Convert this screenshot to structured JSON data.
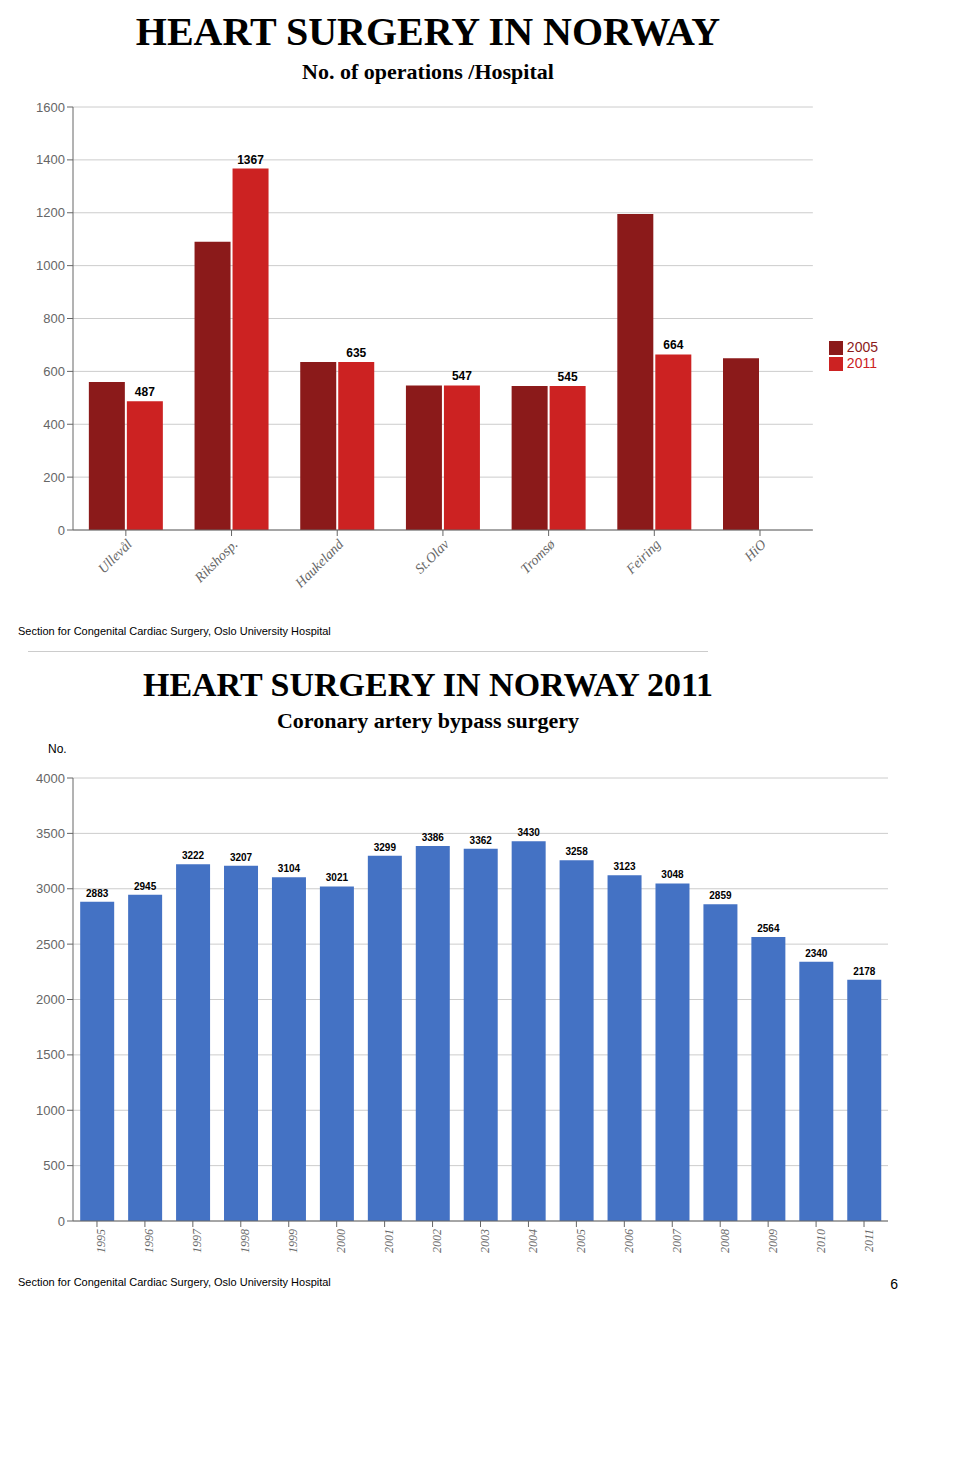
{
  "chart_data": [
    {
      "type": "bar",
      "title": "HEART SURGERY IN NORWAY",
      "subtitle": "No. of operations /Hospital",
      "categories": [
        "Ullevål",
        "Rikshosp.",
        "Haukeland",
        "St.Olav",
        "Tromsø",
        "Feiring",
        "HiO"
      ],
      "series": [
        {
          "name": "2005",
          "color": "#8b1a1a",
          "values": [
            560,
            1090,
            635,
            547,
            545,
            1195,
            650
          ]
        },
        {
          "name": "2011",
          "color": "#cc2222",
          "values": [
            487,
            1367,
            635,
            547,
            545,
            664,
            0
          ],
          "data_labels": true
        }
      ],
      "ylim": [
        0,
        1600
      ],
      "yticks": [
        0,
        200,
        400,
        600,
        800,
        1000,
        1200,
        1400,
        1600
      ],
      "grid": true,
      "legend": "right",
      "footer": "Section for Congenital Cardiac Surgery, Oslo University Hospital"
    },
    {
      "type": "bar",
      "title": "HEART SURGERY IN NORWAY 2011",
      "subtitle": "Coronary artery bypass surgery",
      "ylabel": "No.",
      "categories": [
        "1995",
        "1996",
        "1997",
        "1998",
        "1999",
        "2000",
        "2001",
        "2002",
        "2003",
        "2004",
        "2005",
        "2006",
        "2007",
        "2008",
        "2009",
        "2010",
        "2011"
      ],
      "values": [
        2883,
        2945,
        3222,
        3207,
        3104,
        3021,
        3299,
        3386,
        3362,
        3430,
        3258,
        3123,
        3048,
        2859,
        2564,
        2340,
        2178
      ],
      "color": "#4472c4",
      "ylim": [
        0,
        4000
      ],
      "yticks": [
        0,
        500,
        1000,
        1500,
        2000,
        2500,
        3000,
        3500,
        4000
      ],
      "grid": true,
      "data_labels": true,
      "footer": "Section for Congenital Cardiac Surgery, Oslo University Hospital",
      "page_number": "6"
    }
  ]
}
